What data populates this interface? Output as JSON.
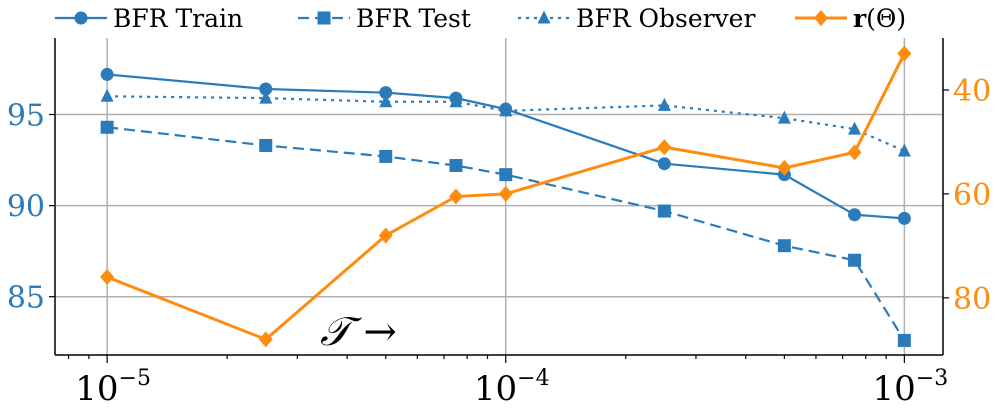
{
  "colors": {
    "blue": "#2b7bba",
    "orange": "#ff8c0f",
    "grid": "#b0b0b0",
    "axis": "#000000"
  },
  "chart_data": {
    "type": "line",
    "x_scale": "log",
    "xlim": [
      7.4e-06,
      0.00125
    ],
    "x_ticks": [
      {
        "value": 1e-05,
        "base": "10",
        "exp": "−5"
      },
      {
        "value": 0.0001,
        "base": "10",
        "exp": "−4"
      },
      {
        "value": 0.001,
        "base": "10",
        "exp": "−3"
      }
    ],
    "ylim_left": [
      81.8,
      99.2
    ],
    "yticks_left": [
      85,
      90,
      95
    ],
    "ylim_right": [
      91,
      30
    ],
    "yticks_right": [
      40,
      60,
      80
    ],
    "grid": true,
    "legend_position": "top",
    "annotation": "𝒯 →",
    "series": [
      {
        "name": "BFR Train",
        "axis": "left",
        "color": "#2b7bba",
        "line": "solid",
        "marker": "circle",
        "x": [
          1e-05,
          2.5e-05,
          5e-05,
          7.5e-05,
          0.0001,
          0.00025,
          0.0005,
          0.00075,
          0.001
        ],
        "y": [
          97.2,
          96.4,
          96.2,
          95.9,
          95.3,
          92.3,
          91.7,
          89.5,
          89.3
        ]
      },
      {
        "name": "BFR Test",
        "axis": "left",
        "color": "#2b7bba",
        "line": "dashed",
        "marker": "square",
        "x": [
          1e-05,
          2.5e-05,
          5e-05,
          7.5e-05,
          0.0001,
          0.00025,
          0.0005,
          0.00075,
          0.001
        ],
        "y": [
          94.3,
          93.3,
          92.7,
          92.2,
          91.7,
          89.7,
          87.8,
          87.0,
          82.6
        ]
      },
      {
        "name": "BFR Observer",
        "axis": "left",
        "color": "#2b7bba",
        "line": "dotted",
        "marker": "triangle",
        "x": [
          1e-05,
          2.5e-05,
          5e-05,
          7.5e-05,
          0.0001,
          0.00025,
          0.0005,
          0.00075,
          0.001
        ],
        "y": [
          96.0,
          95.9,
          95.7,
          95.7,
          95.2,
          95.5,
          94.8,
          94.2,
          93.0
        ]
      },
      {
        "name": "r(Θ)",
        "axis": "right",
        "color": "#ff8c0f",
        "line": "solid",
        "marker": "diamond",
        "x": [
          1e-05,
          2.5e-05,
          5e-05,
          7.5e-05,
          0.0001,
          0.00025,
          0.0005,
          0.00075,
          0.001
        ],
        "y": [
          76,
          88,
          68,
          60.5,
          60,
          51,
          55,
          52,
          33
        ]
      }
    ]
  }
}
